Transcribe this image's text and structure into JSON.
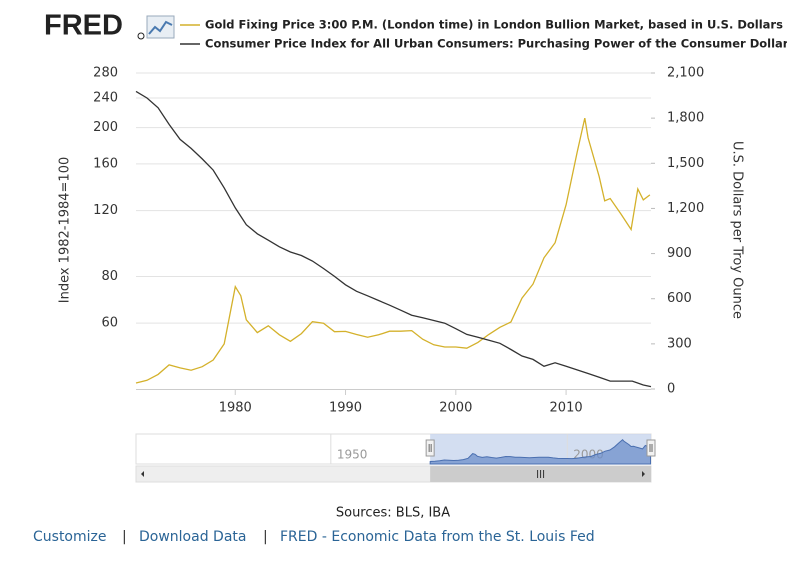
{
  "header": {
    "logo": "FRED"
  },
  "chart_data": {
    "type": "line",
    "legend": {
      "position": "top"
    },
    "y_label": "Index 1982-1984=100",
    "y2_label": "U.S. Dollars per Troy Ounce",
    "xlim": [
      1971,
      2017.7
    ],
    "xticks": [
      1980,
      1990,
      2000,
      2010
    ],
    "ylim": [
      40,
      280
    ],
    "yscale": "log",
    "yticks": [
      60,
      80,
      120,
      160,
      200,
      240,
      280
    ],
    "y2lim": [
      0,
      2100
    ],
    "y2ticks": [
      0,
      300,
      600,
      900,
      {
        "value": 1200,
        "label": "1,200"
      },
      {
        "value": 1500,
        "label": "1,500"
      },
      {
        "value": 1800,
        "label": "1,800"
      },
      {
        "value": 2100,
        "label": "2,100"
      }
    ],
    "grid": true,
    "series": [
      {
        "name": "Gold Fixing Price 3:00 P.M. (London time) in London Bullion Market, based in U.S. Dollars (rig...",
        "color": "#d4b12b",
        "axis": "y2",
        "x": [
          1971,
          1972,
          1973,
          1974,
          1975,
          1976,
          1977,
          1978,
          1979,
          1980,
          1980.5,
          1981,
          1982,
          1983,
          1984,
          1985,
          1986,
          1987,
          1988,
          1989,
          1990,
          1991,
          1992,
          1993,
          1994,
          1995,
          1996,
          1997,
          1998,
          1999,
          2000,
          2001,
          2002,
          2003,
          2004,
          2005,
          2006,
          2007,
          2008,
          2009,
          2010,
          2011,
          2011.7,
          2012,
          2013,
          2013.5,
          2014,
          2015,
          2015.9,
          2016.5,
          2017,
          2017.6
        ],
        "values": [
          40,
          58,
          97,
          160,
          140,
          125,
          148,
          193,
          300,
          680,
          620,
          460,
          375,
          420,
          360,
          317,
          368,
          447,
          437,
          381,
          383,
          362,
          344,
          360,
          384,
          384,
          388,
          331,
          294,
          279,
          279,
          271,
          310,
          363,
          410,
          445,
          604,
          697,
          872,
          972,
          1225,
          1572,
          1800,
          1669,
          1411,
          1250,
          1266,
          1160,
          1060,
          1330,
          1257,
          1290
        ]
      },
      {
        "name": "Consumer Price Index for All Urban Consumers: Purchasing Power of the Consumer Dollar (I...",
        "color": "#333333",
        "axis": "y",
        "x": [
          1971,
          1972,
          1973,
          1974,
          1975,
          1976,
          1977,
          1978,
          1979,
          1980,
          1981,
          1982,
          1983,
          1984,
          1985,
          1986,
          1987,
          1988,
          1989,
          1990,
          1991,
          1992,
          1993,
          1994,
          1995,
          1996,
          1997,
          1998,
          1999,
          2000,
          2001,
          2002,
          2003,
          2004,
          2005,
          2006,
          2007,
          2008,
          2009,
          2010,
          2011,
          2012,
          2013,
          2014,
          2015,
          2016,
          2017,
          2017.7
        ],
        "values": [
          250,
          240,
          226,
          204,
          186,
          176,
          165,
          154,
          138,
          122,
          110,
          104,
          100,
          96,
          93,
          91,
          88,
          84,
          80,
          76,
          73,
          71,
          69,
          67,
          65,
          63,
          62,
          61,
          60,
          58,
          56,
          55,
          54,
          53,
          51,
          49,
          48,
          46,
          47,
          46,
          45,
          44,
          43,
          42,
          42,
          42,
          41,
          40.6
        ]
      }
    ],
    "navigator": {
      "xlim": [
        1908.8,
        2017.7
      ],
      "xticks": [
        1950,
        2000
      ]
    },
    "source": "Sources: BLS, IBA"
  },
  "footer": {
    "links": [
      "Customize",
      "Download Data",
      "FRED - Economic Data from the St. Louis Fed"
    ],
    "separator": "|"
  }
}
